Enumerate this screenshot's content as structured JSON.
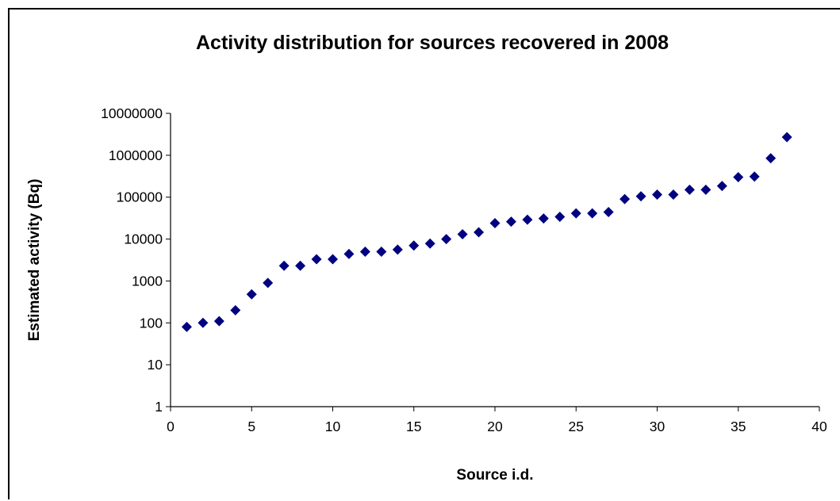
{
  "chart_data": {
    "type": "scatter",
    "title": "Activity distribution for sources recovered in 2008",
    "xlabel": "Source i.d.",
    "ylabel": "Estimated activity (Bq)",
    "xlim": [
      0,
      40
    ],
    "ylim": [
      1,
      10000000
    ],
    "yscale": "log",
    "grid": false,
    "legend": "none",
    "x_ticks": [
      "0",
      "5",
      "10",
      "15",
      "20",
      "25",
      "30",
      "35",
      "40"
    ],
    "y_ticks": [
      "1",
      "10",
      "100",
      "1000",
      "10000",
      "100000",
      "1000000",
      "10000000"
    ],
    "marker": "diamond",
    "marker_color": "#000080",
    "series": [
      {
        "x": [
          1,
          2,
          3,
          4,
          5,
          6,
          7,
          8,
          9,
          10,
          11,
          12,
          13,
          14,
          15,
          16,
          17,
          18,
          19,
          20,
          21,
          22,
          23,
          24,
          25,
          26,
          27,
          28,
          29,
          30,
          31,
          32,
          33,
          34,
          35,
          36,
          37,
          38
        ],
        "y": [
          80,
          100,
          110,
          200,
          480,
          900,
          2300,
          2300,
          3300,
          3300,
          4400,
          5000,
          5000,
          5600,
          7000,
          7800,
          10000,
          13000,
          14500,
          24000,
          26000,
          29000,
          31000,
          34000,
          41000,
          41000,
          44000,
          90000,
          105000,
          115000,
          115000,
          150000,
          150000,
          185000,
          300000,
          310000,
          850000,
          2700000
        ]
      }
    ]
  }
}
